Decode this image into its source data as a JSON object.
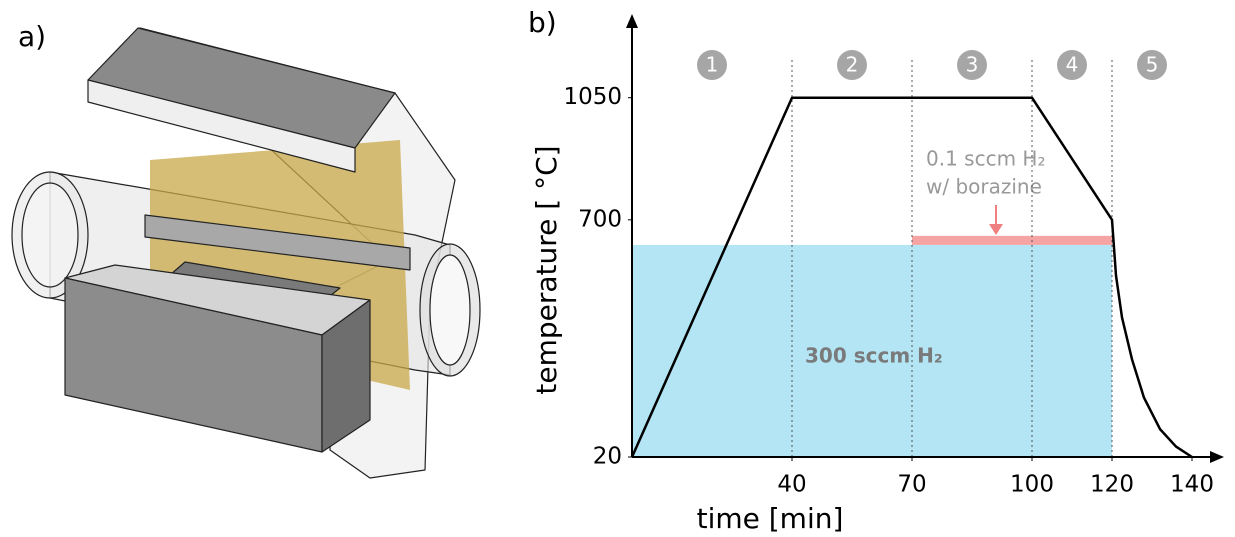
{
  "panel_a": {
    "label": "a)"
  },
  "chart_data": {
    "type": "line",
    "panel_label": "b)",
    "xlabel": "time [min]",
    "ylabel": "temperature [ °C]",
    "xlim": [
      0,
      148
    ],
    "ylim": [
      20,
      1290
    ],
    "xticks": [
      40,
      70,
      100,
      120,
      140
    ],
    "yticks": [
      20,
      700,
      1050
    ],
    "series": [
      {
        "color": "#000000",
        "x": [
          0,
          40,
          100,
          120,
          121,
          122.5,
          125,
          128,
          132,
          136,
          140
        ],
        "values": [
          20,
          1050,
          1050,
          700,
          540,
          420,
          300,
          190,
          100,
          50,
          20
        ]
      }
    ],
    "phase_boundaries": [
      40,
      70,
      100,
      120
    ],
    "phases": [
      "1",
      "2",
      "3",
      "4",
      "5"
    ],
    "regions": [
      {
        "text": [
          "300 sccm H₂"
        ],
        "color": "#b3e5f5",
        "x": [
          0,
          120
        ],
        "y": [
          20,
          628
        ]
      },
      {
        "text": [
          "0.1 sccm H₂",
          "w/ borazine"
        ],
        "color": "#f5a3a3",
        "x": [
          70,
          120
        ],
        "y": [
          628,
          654
        ]
      }
    ]
  }
}
